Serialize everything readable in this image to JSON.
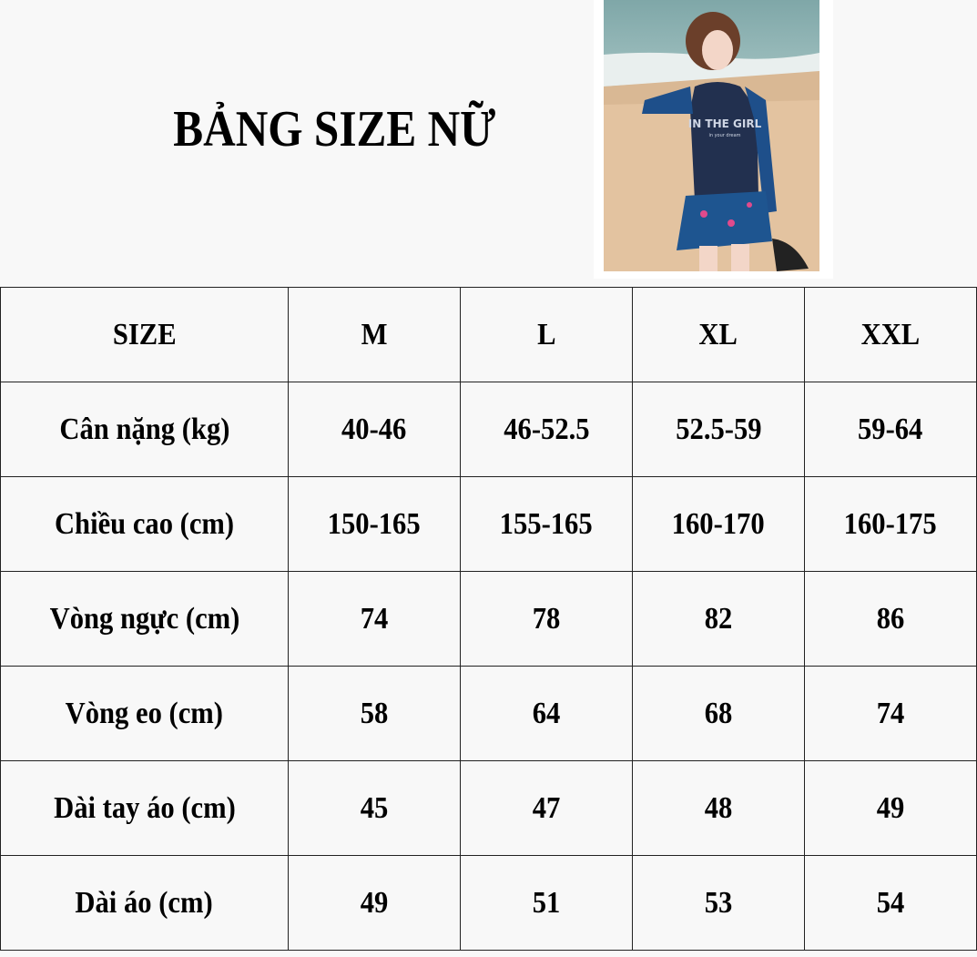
{
  "title": "BẢNG SIZE NỮ",
  "photo": {
    "shirt_text": "IN THE GIRL",
    "shirt_subtext": "in your dream"
  },
  "table": {
    "header": [
      "SIZE",
      "M",
      "L",
      "XL",
      "XXL"
    ],
    "rows": [
      [
        "Cân nặng (kg)",
        "40-46",
        "46-52.5",
        "52.5-59",
        "59-64"
      ],
      [
        "Chiều cao (cm)",
        "150-165",
        "155-165",
        "160-170",
        "160-175"
      ],
      [
        "Vòng ngực (cm)",
        "74",
        "78",
        "82",
        "86"
      ],
      [
        "Vòng eo (cm)",
        "58",
        "64",
        "68",
        "74"
      ],
      [
        "Dài tay áo (cm)",
        "45",
        "47",
        "48",
        "49"
      ],
      [
        "Dài áo (cm)",
        "49",
        "51",
        "53",
        "54"
      ]
    ]
  }
}
